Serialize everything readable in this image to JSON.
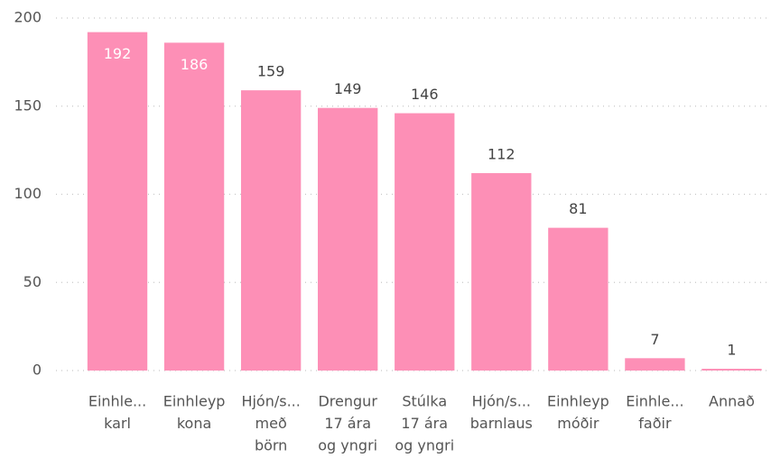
{
  "chart_data": {
    "type": "bar",
    "categories": [
      [
        "Einhle...",
        "karl"
      ],
      [
        "Einhleyp",
        "kona"
      ],
      [
        "Hjón/s...",
        "með",
        "börn"
      ],
      [
        "Drengur",
        "17 ára",
        "og yngri"
      ],
      [
        "Stúlka",
        "17 ára",
        "og yngri"
      ],
      [
        "Hjón/s...",
        "barnlaus"
      ],
      [
        "Einhleyp",
        "móðir"
      ],
      [
        "Einhle...",
        "faðir"
      ],
      [
        "Annað"
      ]
    ],
    "values": [
      192,
      186,
      159,
      149,
      146,
      112,
      81,
      7,
      1
    ],
    "color": "#fd8fb6",
    "ylim": [
      0,
      200
    ],
    "yticks": [
      0,
      50,
      100,
      150,
      200
    ],
    "grid": true
  }
}
